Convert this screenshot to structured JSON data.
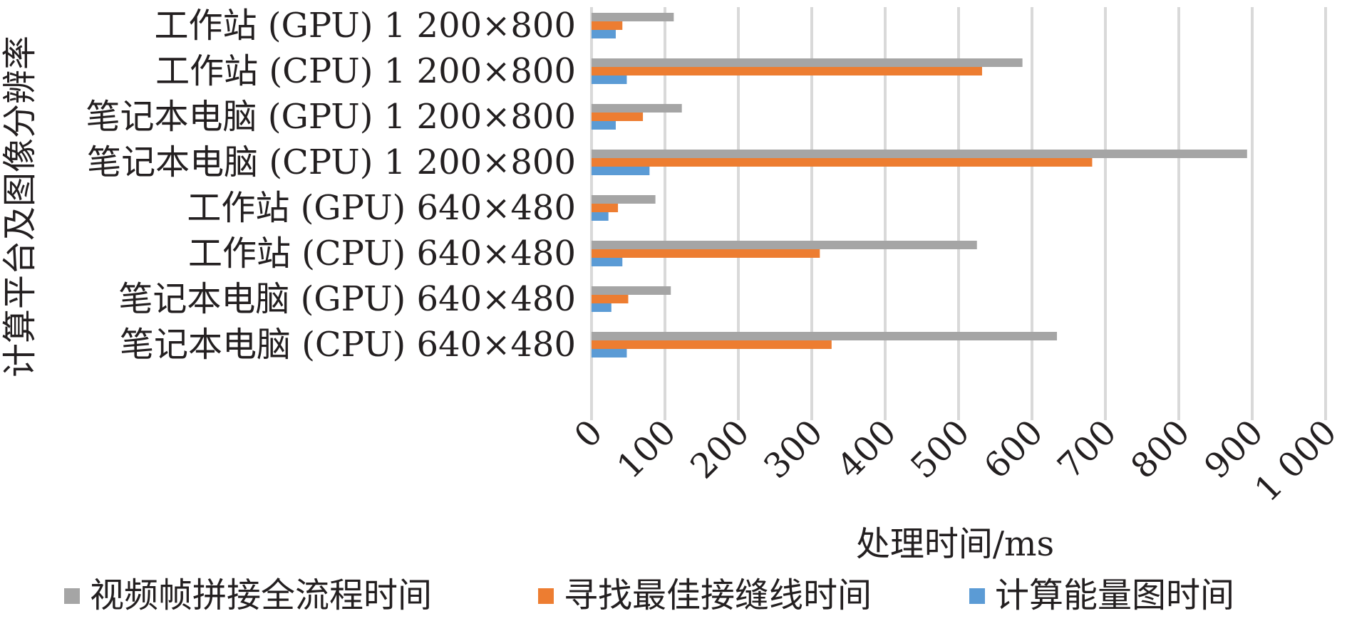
{
  "chart_data": {
    "type": "bar",
    "orientation": "horizontal",
    "categories": [
      "工作站 (GPU) 1 200×800",
      "工作站 (CPU) 1 200×800",
      "笔记本电脑 (GPU) 1 200×800",
      "笔记本电脑 (CPU) 1 200×800",
      "工作站 (GPU) 640×480",
      "工作站 (CPU) 640×480",
      "笔记本电脑 (GPU) 640×480",
      "笔记本电脑 (CPU) 640×480"
    ],
    "series": [
      {
        "name": "视频帧拼接全流程时间",
        "color": "#a5a5a5",
        "values": [
          112,
          587,
          123,
          893,
          87,
          525,
          108,
          634
        ]
      },
      {
        "name": "寻找最佳接缝线时间",
        "color": "#ed7d31",
        "values": [
          42,
          532,
          70,
          682,
          36,
          311,
          50,
          327
        ]
      },
      {
        "name": "计算能量图时间",
        "color": "#5b9bd5",
        "values": [
          33,
          48,
          33,
          79,
          23,
          42,
          27,
          48
        ]
      }
    ],
    "xlabel": "处理时间/ms",
    "ylabel": "计算平台及图像分辨率",
    "xlim": [
      0,
      1000
    ],
    "x_ticks": [
      "0",
      "100",
      "200",
      "300",
      "400",
      "500",
      "600",
      "700",
      "800",
      "900",
      "1 000"
    ],
    "grid": "vertical",
    "legend_position": "bottom"
  }
}
